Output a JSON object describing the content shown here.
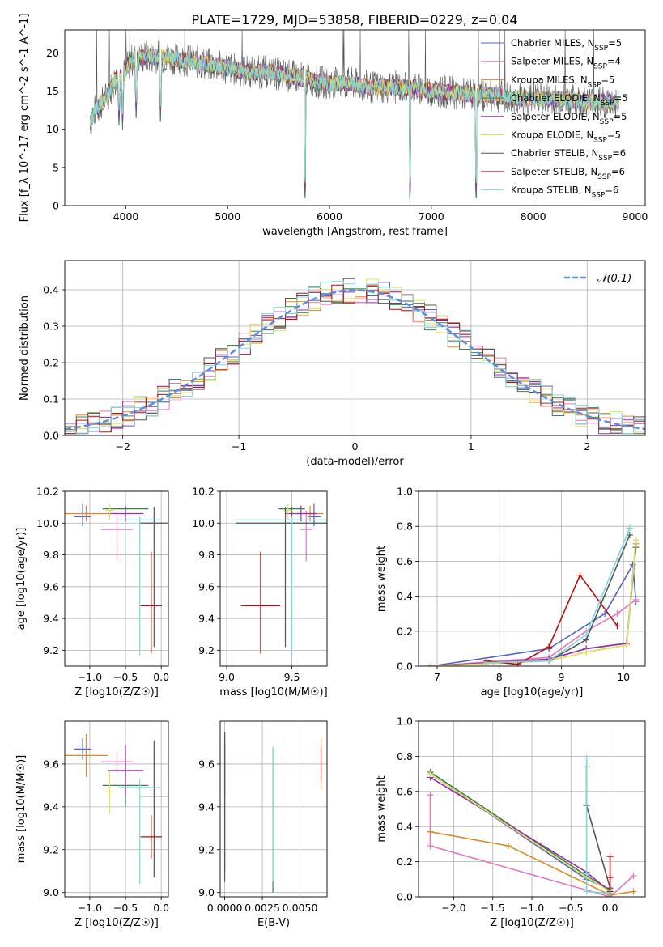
{
  "figure_title": "PLATE=1729, MJD=53858, FIBERID=0229, z=0.04",
  "series_colors": [
    "#5561c6",
    "#e377c2",
    "#d68a2a",
    "#3f7f52",
    "#9b2ca8",
    "#dfe55a",
    "#555555",
    "#b21010",
    "#7fd6dc"
  ],
  "chart_data": [
    {
      "id": "spectrum",
      "type": "line",
      "title": "PLATE=1729, MJD=53858, FIBERID=0229, z=0.04",
      "xlabel": "wavelength [Angstrom, rest frame]",
      "ylabel": "Flux [f_λ 10^-17 erg cm^-2 s^-1 A^-1]",
      "xlim": [
        3400,
        9100
      ],
      "ylim": [
        0,
        23
      ],
      "xticks": [
        "4000",
        "5000",
        "6000",
        "7000",
        "8000",
        "9000"
      ],
      "yticks": [
        "0",
        "5",
        "10",
        "15",
        "20"
      ],
      "legend_position": "upper right",
      "legend": [
        {
          "label": "Chabrier MILES, N_SSP=5"
        },
        {
          "label": "Salpeter MILES, N_SSP=4"
        },
        {
          "label": "Kroupa MILES, N_SSP=5"
        },
        {
          "label": "Chabrier ELODIE, N_SSP=5"
        },
        {
          "label": "Salpeter ELODIE, N_SSP=5"
        },
        {
          "label": "Kroupa ELODIE, N_SSP=5"
        },
        {
          "label": "Chabrier STELIB, N_SSP=6"
        },
        {
          "label": "Salpeter STELIB, N_SSP=6"
        },
        {
          "label": "Kroupa STELIB, N_SSP=6"
        }
      ],
      "continuum": [
        [
          3650,
          11
        ],
        [
          3700,
          12.5
        ],
        [
          3800,
          14
        ],
        [
          3900,
          16.5
        ],
        [
          3970,
          17
        ],
        [
          4050,
          19
        ],
        [
          4200,
          19.5
        ],
        [
          4400,
          19.5
        ],
        [
          4600,
          19
        ],
        [
          4800,
          18.5
        ],
        [
          5000,
          18
        ],
        [
          5200,
          17.5
        ],
        [
          5400,
          17.5
        ],
        [
          5600,
          17
        ],
        [
          5800,
          16.5
        ],
        [
          6000,
          16
        ],
        [
          6200,
          16
        ],
        [
          6400,
          15.5
        ],
        [
          6600,
          15.5
        ],
        [
          6800,
          15.5
        ],
        [
          7000,
          15
        ],
        [
          7200,
          14.8
        ],
        [
          7400,
          14.5
        ],
        [
          7600,
          14.5
        ],
        [
          7800,
          14
        ],
        [
          8000,
          14
        ],
        [
          8200,
          14
        ],
        [
          8400,
          13.8
        ],
        [
          8600,
          13.5
        ],
        [
          8800,
          13.5
        ]
      ],
      "absorption_lines": [
        [
          3933,
          10
        ],
        [
          3968,
          10
        ],
        [
          4101,
          11
        ],
        [
          4340,
          11
        ],
        [
          5175,
          16
        ],
        [
          5760,
          0
        ],
        [
          5890,
          14
        ],
        [
          6563,
          14
        ],
        [
          6790,
          0
        ],
        [
          7440,
          0
        ]
      ]
    },
    {
      "id": "residuals",
      "type": "step",
      "xlabel": "(data-model)/error",
      "ylabel": "Normed distribution",
      "xlim": [
        -2.5,
        2.5
      ],
      "ylim": [
        0,
        0.48
      ],
      "xticks": [
        "−2",
        "−1",
        "0",
        "1",
        "2"
      ],
      "yticks": [
        "0.0",
        "0.1",
        "0.2",
        "0.3",
        "0.4"
      ],
      "reference_label": "𝒩(0,1)",
      "reference_color": "#5b8fd9",
      "bin_width": 0.1,
      "bin_start": -2.5
    },
    {
      "id": "age_vs_Z",
      "type": "errorbar",
      "xlabel": "Z [log10(Z/Z☉)]",
      "ylabel": "age  [log10(age/yr)]",
      "xlim": [
        -1.35,
        0.1
      ],
      "ylim": [
        9.1,
        10.2
      ],
      "xticks": [
        "−1.0",
        "−0.5",
        "0.0"
      ],
      "yticks": [
        "9.2",
        "9.4",
        "9.6",
        "9.8",
        "10.0",
        "10.2"
      ],
      "points": [
        {
          "x": -1.1,
          "xerr": 0.12,
          "y": 10.04,
          "yerr": [
            0.06,
            0.08
          ]
        },
        {
          "x": -0.62,
          "xerr": 0.22,
          "y": 9.96,
          "yerr": [
            0.2,
            0.12
          ]
        },
        {
          "x": -1.05,
          "xerr": 0.3,
          "y": 10.06,
          "yerr": [
            0.05,
            0.05
          ]
        },
        {
          "x": -0.5,
          "xerr": 0.32,
          "y": 10.09,
          "yerr": [
            0.05,
            0.01
          ]
        },
        {
          "x": -0.5,
          "xerr": 0.25,
          "y": 10.06,
          "yerr": [
            0.05,
            0.05
          ]
        },
        {
          "x": -0.72,
          "xerr": 0.06,
          "y": 10.08,
          "yerr": [
            0.06,
            0.04
          ]
        },
        {
          "x": -0.1,
          "xerr": 0.2,
          "y": 10.0,
          "yerr": [
            0.78,
            0.1
          ]
        },
        {
          "x": -0.14,
          "xerr": 0.15,
          "y": 9.48,
          "yerr": [
            0.3,
            0.34
          ]
        },
        {
          "x": -0.3,
          "xerr": 0.3,
          "y": 10.02,
          "yerr": [
            0.85,
            0.02
          ]
        }
      ]
    },
    {
      "id": "age_vs_mass",
      "type": "errorbar",
      "xlabel": "mass [log10(M/M☉)]",
      "ylabel": "",
      "xlim": [
        8.95,
        9.77
      ],
      "ylim": [
        9.1,
        10.2
      ],
      "xticks": [
        "9.0",
        "9.5"
      ],
      "yticks": [
        "9.2",
        "9.4",
        "9.6",
        "9.8",
        "10.0",
        "10.2"
      ],
      "points": [
        {
          "x": 9.67,
          "xerr": 0.05,
          "y": 10.04,
          "yerr": [
            0.06,
            0.08
          ]
        },
        {
          "x": 9.61,
          "xerr": 0.05,
          "y": 9.96,
          "yerr": [
            0.2,
            0.12
          ]
        },
        {
          "x": 9.64,
          "xerr": 0.1,
          "y": 10.06,
          "yerr": [
            0.05,
            0.05
          ]
        },
        {
          "x": 9.5,
          "xerr": 0.1,
          "y": 10.09,
          "yerr": [
            0.05,
            0.01
          ]
        },
        {
          "x": 9.57,
          "xerr": 0.12,
          "y": 10.06,
          "yerr": [
            0.05,
            0.05
          ]
        },
        {
          "x": 9.47,
          "xerr": 0.03,
          "y": 10.08,
          "yerr": [
            0.06,
            0.04
          ]
        },
        {
          "x": 9.45,
          "xerr": 0.38,
          "y": 10.0,
          "yerr": [
            0.78,
            0.1
          ]
        },
        {
          "x": 9.26,
          "xerr": 0.15,
          "y": 9.48,
          "yerr": [
            0.3,
            0.34
          ]
        },
        {
          "x": 9.5,
          "xerr": 0.45,
          "y": 10.02,
          "yerr": [
            0.85,
            0.02
          ]
        }
      ]
    },
    {
      "id": "weight_vs_age",
      "type": "line",
      "xlabel": "age  [log10(age/yr)]",
      "ylabel": "mass weight",
      "xlim": [
        6.7,
        10.35
      ],
      "ylim": [
        0,
        1.0
      ],
      "xticks": [
        "7",
        "8",
        "9",
        "10"
      ],
      "yticks": [
        "0.0",
        "0.2",
        "0.4",
        "0.6",
        "0.8",
        "1.0"
      ],
      "series": [
        {
          "x": [
            6.9,
            8.8,
            9.7,
            10.15,
            10.2
          ],
          "y": [
            0.0,
            0.1,
            0.3,
            0.58,
            0.37
          ]
        },
        {
          "x": [
            6.9,
            8.8,
            9.4,
            9.9,
            10.2
          ],
          "y": [
            0.0,
            0.05,
            0.2,
            0.3,
            0.38
          ]
        },
        {
          "x": [
            6.9,
            8.8,
            9.4,
            10.05,
            10.2
          ],
          "y": [
            0.0,
            0.03,
            0.08,
            0.12,
            0.7
          ]
        },
        {
          "x": [
            6.9,
            8.8,
            9.4,
            10.05,
            10.2
          ],
          "y": [
            0.0,
            0.04,
            0.1,
            0.13,
            0.68
          ]
        },
        {
          "x": [
            6.9,
            8.8,
            9.4,
            10.05,
            10.2
          ],
          "y": [
            0.0,
            0.04,
            0.1,
            0.13,
            0.72
          ]
        },
        {
          "x": [
            6.9,
            8.8,
            9.4,
            10.05,
            10.2
          ],
          "y": [
            0.0,
            0.03,
            0.08,
            0.12,
            0.72
          ]
        },
        {
          "x": [
            7.8,
            8.8,
            9.4,
            10.1
          ],
          "y": [
            0.02,
            0.03,
            0.15,
            0.75
          ]
        },
        {
          "x": [
            7.8,
            8.3,
            8.8,
            9.3,
            9.9
          ],
          "y": [
            0.03,
            0.01,
            0.11,
            0.52,
            0.23
          ]
        },
        {
          "x": [
            7.8,
            8.8,
            9.4,
            10.1
          ],
          "y": [
            0.02,
            0.03,
            0.18,
            0.79
          ]
        }
      ]
    },
    {
      "id": "mass_vs_Z",
      "type": "errorbar",
      "xlabel": "Z [log10(Z/Z☉)]",
      "ylabel": "mass [log10(M/M☉)]",
      "xlim": [
        -1.35,
        0.1
      ],
      "ylim": [
        8.98,
        9.8
      ],
      "xticks": [
        "−1.0",
        "−0.5",
        "0.0"
      ],
      "yticks": [
        "9.0",
        "9.2",
        "9.4",
        "9.6"
      ],
      "points": [
        {
          "x": -1.1,
          "xerr": 0.12,
          "y": 9.67,
          "yerr": [
            0.05,
            0.05
          ]
        },
        {
          "x": -0.62,
          "xerr": 0.22,
          "y": 9.61,
          "yerr": [
            0.05,
            0.05
          ]
        },
        {
          "x": -1.05,
          "xerr": 0.3,
          "y": 9.64,
          "yerr": [
            0.1,
            0.1
          ]
        },
        {
          "x": -0.5,
          "xerr": 0.32,
          "y": 9.5,
          "yerr": [
            0.1,
            0.1
          ]
        },
        {
          "x": -0.5,
          "xerr": 0.25,
          "y": 9.57,
          "yerr": [
            0.12,
            0.12
          ]
        },
        {
          "x": -0.72,
          "xerr": 0.06,
          "y": 9.47,
          "yerr": [
            0.1,
            0.1
          ]
        },
        {
          "x": -0.1,
          "xerr": 0.2,
          "y": 9.45,
          "yerr": [
            0.38,
            0.26
          ]
        },
        {
          "x": -0.14,
          "xerr": 0.15,
          "y": 9.26,
          "yerr": [
            0.1,
            0.1
          ]
        },
        {
          "x": -0.3,
          "xerr": 0.3,
          "y": 9.49,
          "yerr": [
            0.45,
            0.04
          ]
        }
      ]
    },
    {
      "id": "mass_vs_ebv",
      "type": "errorbar",
      "xlabel": "E(B-V)",
      "ylabel": "",
      "xlim": [
        -0.0003,
        0.0068
      ],
      "ylim": [
        8.98,
        9.8
      ],
      "xticks": [
        "0.0000",
        "0.0025",
        "0.0050"
      ],
      "yticks": [
        "9.0",
        "9.2",
        "9.4",
        "9.6"
      ],
      "points": [
        {
          "x": 0.0,
          "xerr": 0,
          "y": 9.6,
          "yerr": [
            0.15,
            0.15
          ]
        },
        {
          "x": 0.0,
          "xerr": 0,
          "y": 9.5,
          "yerr": [
            0.4,
            0.25
          ]
        },
        {
          "x": 0.0064,
          "xerr": 0,
          "y": 9.6,
          "yerr": [
            0.12,
            0.12
          ]
        },
        {
          "x": 0.0032,
          "xerr": 0,
          "y": 9.3,
          "yerr": [
            0.3,
            0.37
          ]
        },
        {
          "x": 0.0,
          "xerr": 0,
          "y": 9.4,
          "yerr": [
            0.3,
            0.3
          ]
        },
        {
          "x": 0.0032,
          "xerr": 0,
          "y": 9.45,
          "yerr": [
            0.05,
            0.05
          ]
        },
        {
          "x": 0.0,
          "xerr": 0,
          "y": 9.45,
          "yerr": [
            0.4,
            0.3
          ]
        },
        {
          "x": 0.0064,
          "xerr": 0,
          "y": 9.6,
          "yerr": [
            0.08,
            0.08
          ]
        },
        {
          "x": 0.0032,
          "xerr": 0,
          "y": 9.45,
          "yerr": [
            0.4,
            0.23
          ]
        }
      ]
    },
    {
      "id": "weight_vs_Z",
      "type": "line",
      "xlabel": "Z [log10(Z/Z☉)]",
      "ylabel": "mass weight",
      "xlim": [
        -2.45,
        0.45
      ],
      "ylim": [
        0,
        1.0
      ],
      "xticks": [
        "−2.0",
        "−1.5",
        "−1.0",
        "−0.5",
        "0.0"
      ],
      "yticks": [
        "0.0",
        "0.2",
        "0.4",
        "0.6",
        "0.8",
        "1.0"
      ],
      "series": [
        {
          "x": [
            -2.3,
            -0.3,
            0.0
          ],
          "y": [
            0.7,
            0.1,
            0.04
          ]
        },
        {
          "x": [
            -2.3,
            -2.3,
            -2.3,
            0.0,
            0.3
          ],
          "y": [
            0.58,
            0.37,
            0.29,
            0.0,
            0.12
          ]
        },
        {
          "x": [
            -2.3,
            -1.3,
            0.0,
            0.3
          ],
          "y": [
            0.37,
            0.29,
            0.01,
            0.03
          ]
        },
        {
          "x": [
            -2.3,
            -0.3,
            0.0
          ],
          "y": [
            0.71,
            0.12,
            0.04
          ]
        },
        {
          "x": [
            -2.3,
            -0.3,
            0.0
          ],
          "y": [
            0.68,
            0.14,
            0.03
          ]
        },
        {
          "x": [
            -2.3,
            -0.3,
            0.0
          ],
          "y": [
            0.7,
            0.11,
            0.03
          ]
        },
        {
          "x": [
            -0.3,
            -0.3,
            0.0
          ],
          "y": [
            0.74,
            0.52,
            0.05
          ]
        },
        {
          "x": [
            0.0,
            0.0,
            0.0
          ],
          "y": [
            0.23,
            0.11,
            0.03
          ]
        },
        {
          "x": [
            -0.3,
            -0.3,
            -0.3,
            0.0
          ],
          "y": [
            0.79,
            0.13,
            0.03,
            0.02
          ]
        }
      ]
    }
  ]
}
